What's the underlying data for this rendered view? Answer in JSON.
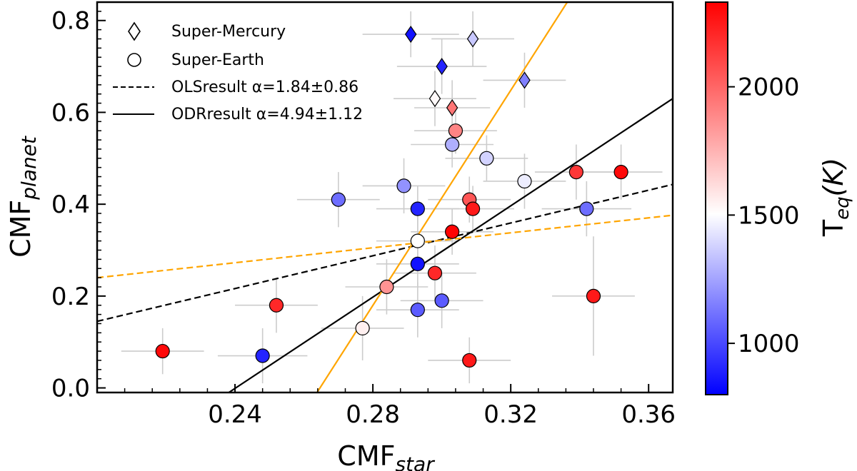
{
  "chart_data": {
    "type": "scatter",
    "xlabel": "CMF",
    "xlabel_sub": "star",
    "ylabel": "CMF",
    "ylabel_sub": "planet",
    "xlim": [
      0.2,
      0.367
    ],
    "ylim": [
      -0.01,
      0.84
    ],
    "xticks": [
      "0.24",
      "0.28",
      "0.32",
      "0.36"
    ],
    "yticks": [
      "0.0",
      "0.2",
      "0.4",
      "0.6",
      "0.8"
    ],
    "xtick_values": [
      0.24,
      0.28,
      0.32,
      0.36
    ],
    "ytick_values": [
      0.0,
      0.2,
      0.4,
      0.6,
      0.8
    ],
    "colorbar": {
      "label": "T",
      "label_sub": "eq",
      "label_suffix": "(K)",
      "range": [
        800,
        2330
      ],
      "ticks": [
        "1000",
        "1500",
        "2000"
      ],
      "tick_values": [
        1000,
        1500,
        2000
      ],
      "colors": [
        "#0000ff",
        "#ffffff",
        "#ff0000"
      ]
    },
    "legend": {
      "placement": "top-left",
      "items": [
        {
          "label": "Super-Mercury",
          "marker": "diamond"
        },
        {
          "label": "Super-Earth",
          "marker": "circle"
        },
        {
          "label": "OLSresult α=1.84±0.86",
          "marker": "dashed-line"
        },
        {
          "label": "ODRresult α=4.94±1.12",
          "marker": "solid-line"
        }
      ]
    },
    "lines": [
      {
        "name": "OLS black dashed",
        "color": "#000000",
        "dash": true,
        "x": [
          0.2,
          0.367
        ],
        "y": [
          0.145,
          0.443
        ]
      },
      {
        "name": "ODR black solid",
        "color": "#000000",
        "dash": false,
        "x": [
          0.2382,
          0.367
        ],
        "y": [
          -0.01,
          0.63
        ]
      },
      {
        "name": "orange dashed",
        "color": "#ffa500",
        "dash": true,
        "x": [
          0.2,
          0.367
        ],
        "y": [
          0.24,
          0.376
        ]
      },
      {
        "name": "orange solid",
        "color": "#ffa500",
        "dash": false,
        "x": [
          0.2638,
          0.3364
        ],
        "y": [
          -0.01,
          0.84
        ]
      }
    ],
    "super_mercury": [
      {
        "x": 0.291,
        "y": 0.77,
        "teq": 850,
        "xerr": 0.014,
        "yerr": 0.05
      },
      {
        "x": 0.309,
        "y": 0.76,
        "teq": 1350,
        "xerr": 0.012,
        "yerr": 0.06
      },
      {
        "x": 0.3,
        "y": 0.7,
        "teq": 900,
        "xerr": 0.013,
        "yerr": 0.06
      },
      {
        "x": 0.324,
        "y": 0.67,
        "teq": 1150,
        "xerr": 0.012,
        "yerr": 0.06
      },
      {
        "x": 0.298,
        "y": 0.63,
        "teq": 1520,
        "xerr": 0.012,
        "yerr": 0.06
      },
      {
        "x": 0.303,
        "y": 0.61,
        "teq": 1950,
        "xerr": 0.011,
        "yerr": 0.06
      }
    ],
    "super_earth": [
      {
        "x": 0.304,
        "y": 0.56,
        "teq": 1900,
        "xerr": 0.012,
        "yerr": 0.05
      },
      {
        "x": 0.303,
        "y": 0.53,
        "teq": 1280,
        "xerr": 0.012,
        "yerr": 0.05
      },
      {
        "x": 0.313,
        "y": 0.5,
        "teq": 1380,
        "xerr": 0.012,
        "yerr": 0.05
      },
      {
        "x": 0.324,
        "y": 0.45,
        "teq": 1450,
        "xerr": 0.012,
        "yerr": 0.06
      },
      {
        "x": 0.289,
        "y": 0.44,
        "teq": 1200,
        "xerr": 0.012,
        "yerr": 0.06
      },
      {
        "x": 0.27,
        "y": 0.41,
        "teq": 1100,
        "xerr": 0.012,
        "yerr": 0.06
      },
      {
        "x": 0.308,
        "y": 0.41,
        "teq": 2050,
        "xerr": 0.012,
        "yerr": 0.05
      },
      {
        "x": 0.293,
        "y": 0.39,
        "teq": 900,
        "xerr": 0.012,
        "yerr": 0.05
      },
      {
        "x": 0.309,
        "y": 0.39,
        "teq": 2250,
        "xerr": 0.012,
        "yerr": 0.05
      },
      {
        "x": 0.339,
        "y": 0.47,
        "teq": 2150,
        "xerr": 0.012,
        "yerr": 0.06
      },
      {
        "x": 0.352,
        "y": 0.47,
        "teq": 2300,
        "xerr": 0.012,
        "yerr": 0.06
      },
      {
        "x": 0.342,
        "y": 0.39,
        "teq": 1100,
        "xerr": 0.013,
        "yerr": 0.06
      },
      {
        "x": 0.303,
        "y": 0.34,
        "teq": 2320,
        "xerr": 0.012,
        "yerr": 0.05
      },
      {
        "x": 0.293,
        "y": 0.32,
        "teq": 1500,
        "xerr": 0.012,
        "yerr": 0.06
      },
      {
        "x": 0.293,
        "y": 0.27,
        "teq": 850,
        "xerr": 0.012,
        "yerr": 0.05
      },
      {
        "x": 0.298,
        "y": 0.25,
        "teq": 2200,
        "xerr": 0.012,
        "yerr": 0.06
      },
      {
        "x": 0.284,
        "y": 0.22,
        "teq": 1850,
        "xerr": 0.012,
        "yerr": 0.06
      },
      {
        "x": 0.252,
        "y": 0.18,
        "teq": 2200,
        "xerr": 0.012,
        "yerr": 0.06
      },
      {
        "x": 0.293,
        "y": 0.17,
        "teq": 1050,
        "xerr": 0.012,
        "yerr": 0.06
      },
      {
        "x": 0.3,
        "y": 0.19,
        "teq": 1050,
        "xerr": 0.012,
        "yerr": 0.06
      },
      {
        "x": 0.344,
        "y": 0.2,
        "teq": 2250,
        "xerr": 0.012,
        "yerr": 0.13
      },
      {
        "x": 0.277,
        "y": 0.13,
        "teq": 1550,
        "xerr": 0.012,
        "yerr": 0.07
      },
      {
        "x": 0.219,
        "y": 0.08,
        "teq": 2300,
        "xerr": 0.012,
        "yerr": 0.05
      },
      {
        "x": 0.248,
        "y": 0.07,
        "teq": 900,
        "xerr": 0.013,
        "yerr": 0.06
      },
      {
        "x": 0.308,
        "y": 0.06,
        "teq": 2250,
        "xerr": 0.012,
        "yerr": 0.05
      }
    ]
  }
}
